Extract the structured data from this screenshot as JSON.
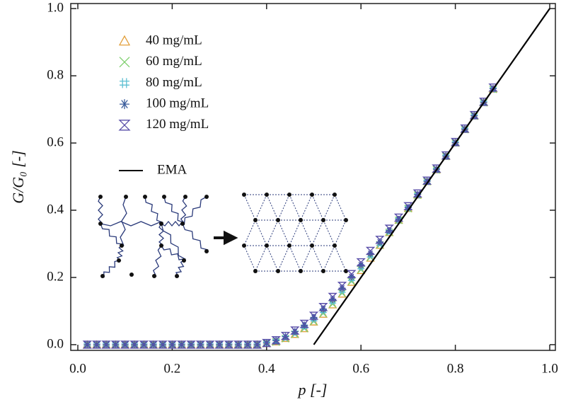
{
  "chart_data": {
    "type": "scatter",
    "xlabel": "p [-]",
    "ylabel": "G/G₀ [-]",
    "xlim": [
      -0.015,
      1.012
    ],
    "ylim": [
      -0.017,
      1.015
    ],
    "xticks": [
      {
        "value": 0,
        "label": "0.0"
      },
      {
        "value": 0.2,
        "label": "0.2"
      },
      {
        "value": 0.4,
        "label": "0.4"
      },
      {
        "value": 0.6,
        "label": "0.6"
      },
      {
        "value": 0.8,
        "label": "0.8"
      },
      {
        "value": 1,
        "label": "1.0"
      }
    ],
    "yticks": [
      {
        "value": 0,
        "label": "0.0"
      },
      {
        "value": 0.2,
        "label": "0.2"
      },
      {
        "value": 0.4,
        "label": "0.4"
      },
      {
        "value": 0.6,
        "label": "0.6"
      },
      {
        "value": 0.8,
        "label": "0.8"
      },
      {
        "value": 1,
        "label": "1.0"
      }
    ],
    "legend": "upper left",
    "x": [
      0.02,
      0.04,
      0.06,
      0.08,
      0.1,
      0.12,
      0.14,
      0.16,
      0.18,
      0.2,
      0.22,
      0.24,
      0.26,
      0.28,
      0.3,
      0.32,
      0.34,
      0.36,
      0.38,
      0.4,
      0.42,
      0.44,
      0.46,
      0.48,
      0.5,
      0.52,
      0.54,
      0.56,
      0.58,
      0.6,
      0.62,
      0.64,
      0.66,
      0.68,
      0.7,
      0.72,
      0.74,
      0.76,
      0.78,
      0.8,
      0.82,
      0.84,
      0.86,
      0.88
    ],
    "series": [
      {
        "name": "40 mg/mL",
        "marker": "triangle",
        "color": "#e3a03c",
        "values": [
          0,
          0,
          0,
          0,
          0,
          0,
          0,
          0,
          0,
          0,
          0,
          0,
          0,
          0,
          0,
          0,
          0,
          0,
          0,
          0.003,
          0.008,
          0.018,
          0.03,
          0.047,
          0.067,
          0.09,
          0.118,
          0.15,
          0.185,
          0.22,
          0.257,
          0.295,
          0.333,
          0.37,
          0.405,
          0.445,
          0.485,
          0.52,
          0.56,
          0.6,
          0.64,
          0.68,
          0.72,
          0.76
        ]
      },
      {
        "name": "60 mg/mL",
        "marker": "x",
        "color": "#7fcf6e",
        "values": [
          0,
          0,
          0,
          0,
          0,
          0,
          0,
          0,
          0,
          0,
          0,
          0,
          0,
          0,
          0,
          0,
          0,
          0,
          0,
          0.003,
          0.008,
          0.018,
          0.031,
          0.048,
          0.069,
          0.093,
          0.121,
          0.153,
          0.188,
          0.223,
          0.26,
          0.297,
          0.334,
          0.37,
          0.405,
          0.445,
          0.485,
          0.52,
          0.56,
          0.6,
          0.64,
          0.68,
          0.72,
          0.76
        ]
      },
      {
        "name": "80 mg/mL",
        "marker": "hash",
        "color": "#5cbfd2",
        "values": [
          0,
          0,
          0,
          0,
          0,
          0,
          0,
          0,
          0,
          0,
          0,
          0,
          0,
          0,
          0,
          0,
          0,
          0,
          0,
          0.004,
          0.01,
          0.021,
          0.035,
          0.053,
          0.075,
          0.1,
          0.128,
          0.16,
          0.195,
          0.23,
          0.265,
          0.3,
          0.336,
          0.371,
          0.406,
          0.445,
          0.485,
          0.52,
          0.56,
          0.6,
          0.64,
          0.68,
          0.72,
          0.76
        ]
      },
      {
        "name": "100 mg/mL",
        "marker": "asterisk",
        "color": "#3b5d9c",
        "values": [
          0,
          0,
          0,
          0,
          0,
          0,
          0,
          0,
          0,
          0,
          0,
          0,
          0,
          0,
          0,
          0,
          0,
          0,
          0,
          0.005,
          0.012,
          0.024,
          0.039,
          0.058,
          0.081,
          0.106,
          0.135,
          0.168,
          0.202,
          0.237,
          0.271,
          0.305,
          0.339,
          0.373,
          0.408,
          0.447,
          0.486,
          0.522,
          0.561,
          0.601,
          0.641,
          0.681,
          0.721,
          0.762
        ]
      },
      {
        "name": "120 mg/mL",
        "marker": "hourglass",
        "color": "#5a4fa9",
        "values": [
          0,
          0,
          0,
          0,
          0,
          0,
          0,
          0,
          0,
          0,
          0,
          0,
          0,
          0,
          0,
          0,
          0,
          0,
          0,
          0.005,
          0.013,
          0.026,
          0.042,
          0.062,
          0.086,
          0.112,
          0.142,
          0.175,
          0.21,
          0.245,
          0.279,
          0.312,
          0.345,
          0.378,
          0.412,
          0.45,
          0.488,
          0.524,
          0.563,
          0.603,
          0.643,
          0.683,
          0.723,
          0.765
        ]
      }
    ],
    "lines": [
      {
        "name": "EMA",
        "color": "#000000",
        "x": [
          0.5,
          1.0
        ],
        "values": [
          0,
          1
        ]
      }
    ]
  }
}
